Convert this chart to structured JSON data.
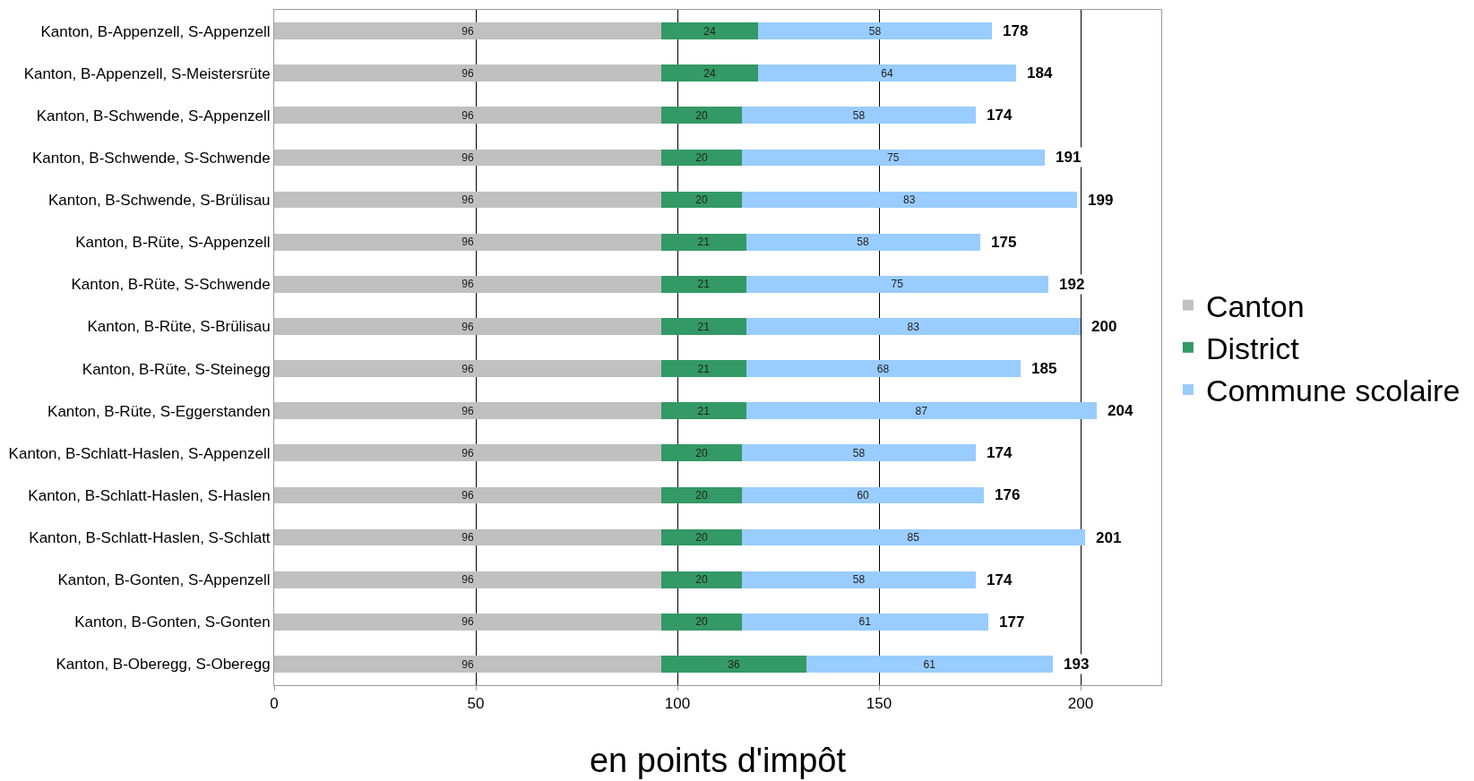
{
  "chart_data": {
    "type": "bar",
    "orientation": "horizontal",
    "stacked": true,
    "xlabel": "en points d'impôt",
    "categories": [
      "Kanton, B-Appenzell, S-Appenzell",
      "Kanton, B-Appenzell, S-Meistersrüte",
      "Kanton, B-Schwende, S-Appenzell",
      "Kanton, B-Schwende, S-Schwende",
      "Kanton, B-Schwende, S-Brülisau",
      "Kanton, B-Rüte, S-Appenzell",
      "Kanton, B-Rüte, S-Schwende",
      "Kanton, B-Rüte, S-Brülisau",
      "Kanton, B-Rüte, S-Steinegg",
      "Kanton, B-Rüte, S-Eggerstanden",
      "Kanton, B-Schlatt-Haslen, S-Appenzell",
      "Kanton, B-Schlatt-Haslen, S-Haslen",
      "Kanton, B-Schlatt-Haslen, S-Schlatt",
      "Kanton, B-Gonten, S-Appenzell",
      "Kanton, B-Gonten, S-Gonten",
      "Kanton, B-Oberegg, S-Oberegg"
    ],
    "series": [
      {
        "name": "Canton",
        "color": "#c0c0c0",
        "values": [
          96,
          96,
          96,
          96,
          96,
          96,
          96,
          96,
          96,
          96,
          96,
          96,
          96,
          96,
          96,
          96
        ]
      },
      {
        "name": "District",
        "color": "#339966",
        "values": [
          24,
          24,
          20,
          20,
          20,
          21,
          21,
          21,
          21,
          21,
          20,
          20,
          20,
          20,
          20,
          36
        ]
      },
      {
        "name": "Commune scolaire",
        "color": "#99ccff",
        "values": [
          58,
          64,
          58,
          75,
          83,
          58,
          75,
          83,
          68,
          87,
          58,
          60,
          85,
          58,
          61,
          61
        ]
      }
    ],
    "totals": [
      "178",
      "184",
      "174",
      "191",
      "199",
      "175",
      "192",
      "200",
      "185",
      "204",
      "174",
      "176",
      "201",
      "174",
      "177",
      "193"
    ],
    "data_labels": true,
    "xlim": [
      0,
      220
    ],
    "xticks": [
      0,
      50,
      100,
      150,
      200
    ],
    "grid": "x",
    "legend": "right"
  }
}
